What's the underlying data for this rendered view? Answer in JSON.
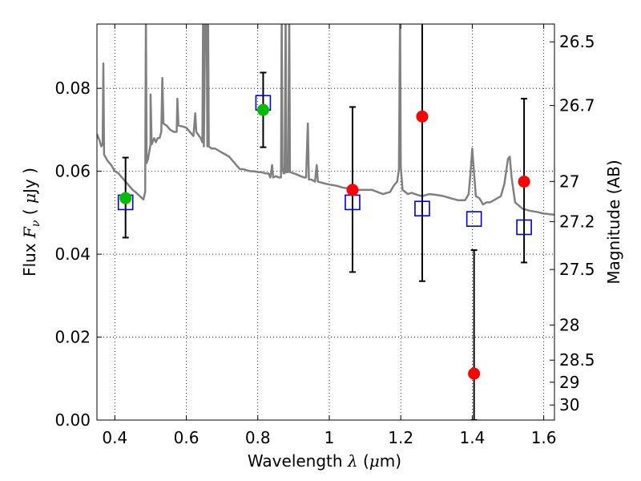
{
  "chart_data": {
    "type": "scatter",
    "xlabel": {
      "prefix": "Wavelength  ",
      "symbol": "λ",
      "unit_open": " (",
      "unit_mu": "μ",
      "unit_rest": "m)"
    },
    "ylabel": {
      "prefix": "Flux  ",
      "symbol": "F",
      "sub": "ν",
      "unit_open": "  (  ",
      "unit_mu": "μ",
      "unit_rest": "Jy  )"
    },
    "y2label": "Magnitude (AB)",
    "xlim": [
      0.35,
      1.63
    ],
    "ylim": [
      0.0,
      0.0955
    ],
    "grid": true,
    "x_ticks": [
      0.4,
      0.6,
      0.8,
      1.0,
      1.2,
      1.4,
      1.6
    ],
    "x_tick_labels": [
      "0.4",
      "0.6",
      "0.8",
      "1",
      "1.2",
      "1.4",
      "1.6"
    ],
    "y_ticks": [
      0.0,
      0.02,
      0.04,
      0.06,
      0.08
    ],
    "y_tick_labels": [
      "0.00",
      "0.02",
      "0.04",
      "0.06",
      "0.08"
    ],
    "y2_ticks": [
      26.5,
      26.7,
      27.0,
      27.2,
      27.5,
      28.0,
      28.5,
      29.0,
      30.0
    ],
    "y2_tick_labels": [
      "26.5",
      "26.7",
      "27",
      "27.2",
      "27.5",
      "28",
      "28.5",
      "29",
      "30"
    ],
    "template_color": "#808080",
    "template_spectrum": [
      [
        0.35,
        0.069
      ],
      [
        0.357,
        0.0675
      ],
      [
        0.362,
        0.066
      ],
      [
        0.366,
        0.0665
      ],
      [
        0.368,
        0.086
      ],
      [
        0.37,
        0.064
      ],
      [
        0.38,
        0.0625
      ],
      [
        0.39,
        0.0615
      ],
      [
        0.4,
        0.06
      ],
      [
        0.41,
        0.0595
      ],
      [
        0.42,
        0.0585
      ],
      [
        0.43,
        0.0575
      ],
      [
        0.44,
        0.0565
      ],
      [
        0.45,
        0.0555
      ],
      [
        0.46,
        0.0548
      ],
      [
        0.47,
        0.054
      ],
      [
        0.48,
        0.0532
      ],
      [
        0.485,
        0.055
      ],
      [
        0.487,
        0.0985
      ],
      [
        0.489,
        0.062
      ],
      [
        0.493,
        0.063
      ],
      [
        0.5,
        0.0665
      ],
      [
        0.5,
        0.0785
      ],
      [
        0.503,
        0.0665
      ],
      [
        0.51,
        0.068
      ],
      [
        0.515,
        0.067
      ],
      [
        0.52,
        0.068
      ],
      [
        0.525,
        0.068
      ],
      [
        0.53,
        0.0695
      ],
      [
        0.533,
        0.0825
      ],
      [
        0.536,
        0.0715
      ],
      [
        0.545,
        0.071
      ],
      [
        0.555,
        0.07
      ],
      [
        0.565,
        0.0695
      ],
      [
        0.573,
        0.0695
      ],
      [
        0.575,
        0.0775
      ],
      [
        0.578,
        0.071
      ],
      [
        0.59,
        0.0708
      ],
      [
        0.6,
        0.0705
      ],
      [
        0.61,
        0.0695
      ],
      [
        0.62,
        0.0685
      ],
      [
        0.625,
        0.074
      ],
      [
        0.628,
        0.0695
      ],
      [
        0.64,
        0.068
      ],
      [
        0.645,
        0.067
      ],
      [
        0.647,
        0.0985
      ],
      [
        0.649,
        0.066
      ],
      [
        0.653,
        0.098
      ],
      [
        0.655,
        0.0985
      ],
      [
        0.657,
        0.098
      ],
      [
        0.659,
        0.066
      ],
      [
        0.661,
        0.0985
      ],
      [
        0.663,
        0.066
      ],
      [
        0.67,
        0.0655
      ],
      [
        0.68,
        0.0655
      ],
      [
        0.69,
        0.065
      ],
      [
        0.7,
        0.0645
      ],
      [
        0.71,
        0.064
      ],
      [
        0.72,
        0.0635
      ],
      [
        0.73,
        0.0625
      ],
      [
        0.74,
        0.0615
      ],
      [
        0.75,
        0.0605
      ],
      [
        0.76,
        0.0605
      ],
      [
        0.77,
        0.0602
      ],
      [
        0.78,
        0.06
      ],
      [
        0.79,
        0.06
      ],
      [
        0.8,
        0.0598
      ],
      [
        0.81,
        0.0598
      ],
      [
        0.82,
        0.0595
      ],
      [
        0.83,
        0.0595
      ],
      [
        0.835,
        0.0585
      ],
      [
        0.84,
        0.0615
      ],
      [
        0.843,
        0.0585
      ],
      [
        0.85,
        0.0588
      ],
      [
        0.86,
        0.0585
      ],
      [
        0.865,
        0.0585
      ],
      [
        0.867,
        0.0985
      ],
      [
        0.869,
        0.061
      ],
      [
        0.872,
        0.0595
      ],
      [
        0.875,
        0.0595
      ],
      [
        0.878,
        0.0985
      ],
      [
        0.88,
        0.0598
      ],
      [
        0.885,
        0.0598
      ],
      [
        0.888,
        0.0985
      ],
      [
        0.89,
        0.0598
      ],
      [
        0.9,
        0.0595
      ],
      [
        0.91,
        0.0592
      ],
      [
        0.92,
        0.0588
      ],
      [
        0.93,
        0.0585
      ],
      [
        0.935,
        0.0585
      ],
      [
        0.94,
        0.0715
      ],
      [
        0.943,
        0.058
      ],
      [
        0.95,
        0.058
      ],
      [
        0.96,
        0.0575
      ],
      [
        0.965,
        0.0615
      ],
      [
        0.968,
        0.0575
      ],
      [
        0.98,
        0.0572
      ],
      [
        1.0,
        0.0568
      ],
      [
        1.02,
        0.0565
      ],
      [
        1.04,
        0.056
      ],
      [
        1.06,
        0.0558
      ],
      [
        1.08,
        0.0555
      ],
      [
        1.1,
        0.0555
      ],
      [
        1.12,
        0.0555
      ],
      [
        1.15,
        0.0545
      ],
      [
        1.17,
        0.055
      ],
      [
        1.18,
        0.0565
      ],
      [
        1.19,
        0.0575
      ],
      [
        1.195,
        0.0605
      ],
      [
        1.198,
        0.0985
      ],
      [
        1.2,
        0.061
      ],
      [
        1.205,
        0.0555
      ],
      [
        1.21,
        0.0552
      ],
      [
        1.22,
        0.0545
      ],
      [
        1.23,
        0.0548
      ],
      [
        1.24,
        0.0545
      ],
      [
        1.25,
        0.0542
      ],
      [
        1.26,
        0.054
      ],
      [
        1.28,
        0.0545
      ],
      [
        1.3,
        0.0543
      ],
      [
        1.32,
        0.054
      ],
      [
        1.34,
        0.0535
      ],
      [
        1.36,
        0.053
      ],
      [
        1.38,
        0.053
      ],
      [
        1.39,
        0.0545
      ],
      [
        1.395,
        0.0595
      ],
      [
        1.4,
        0.0655
      ],
      [
        1.405,
        0.0595
      ],
      [
        1.41,
        0.054
      ],
      [
        1.42,
        0.0535
      ],
      [
        1.43,
        0.052
      ],
      [
        1.44,
        0.0525
      ],
      [
        1.45,
        0.0525
      ],
      [
        1.47,
        0.0535
      ],
      [
        1.48,
        0.054
      ],
      [
        1.49,
        0.057
      ],
      [
        1.5,
        0.063
      ],
      [
        1.505,
        0.0635
      ],
      [
        1.51,
        0.0585
      ],
      [
        1.52,
        0.0525
      ],
      [
        1.54,
        0.051
      ],
      [
        1.56,
        0.0505
      ],
      [
        1.58,
        0.0502
      ],
      [
        1.6,
        0.0498
      ],
      [
        1.63,
        0.0495
      ]
    ],
    "series": [
      {
        "name": "",
        "marker": "open-square",
        "color": "#0000cc",
        "points": [
          [
            0.43,
            0.0525
          ],
          [
            0.815,
            0.0765
          ],
          [
            1.065,
            0.0525
          ],
          [
            1.26,
            0.051
          ],
          [
            1.405,
            0.0485
          ],
          [
            1.545,
            0.0465
          ]
        ]
      },
      {
        "name": "",
        "marker": "filled-circle",
        "color": "#00bb00",
        "points": [
          [
            0.43,
            0.0535
          ],
          [
            0.815,
            0.0748
          ]
        ]
      },
      {
        "name": "",
        "marker": "filled-circle",
        "color": "#ff0000",
        "points": [
          [
            1.065,
            0.0555
          ],
          [
            1.26,
            0.0732
          ],
          [
            1.405,
            0.0112
          ],
          [
            1.545,
            0.0575
          ]
        ]
      }
    ],
    "error_bars": [
      {
        "x": 0.43,
        "low": 0.044,
        "high": 0.0633
      },
      {
        "x": 0.815,
        "low": 0.0658,
        "high": 0.0838
      },
      {
        "x": 1.065,
        "low": 0.0357,
        "high": 0.0755
      },
      {
        "x": 1.26,
        "low": 0.0335,
        "high": 0.1
      },
      {
        "x": 1.405,
        "low": 0.0,
        "high": 0.041
      },
      {
        "x": 1.545,
        "low": 0.038,
        "high": 0.0775
      }
    ]
  }
}
